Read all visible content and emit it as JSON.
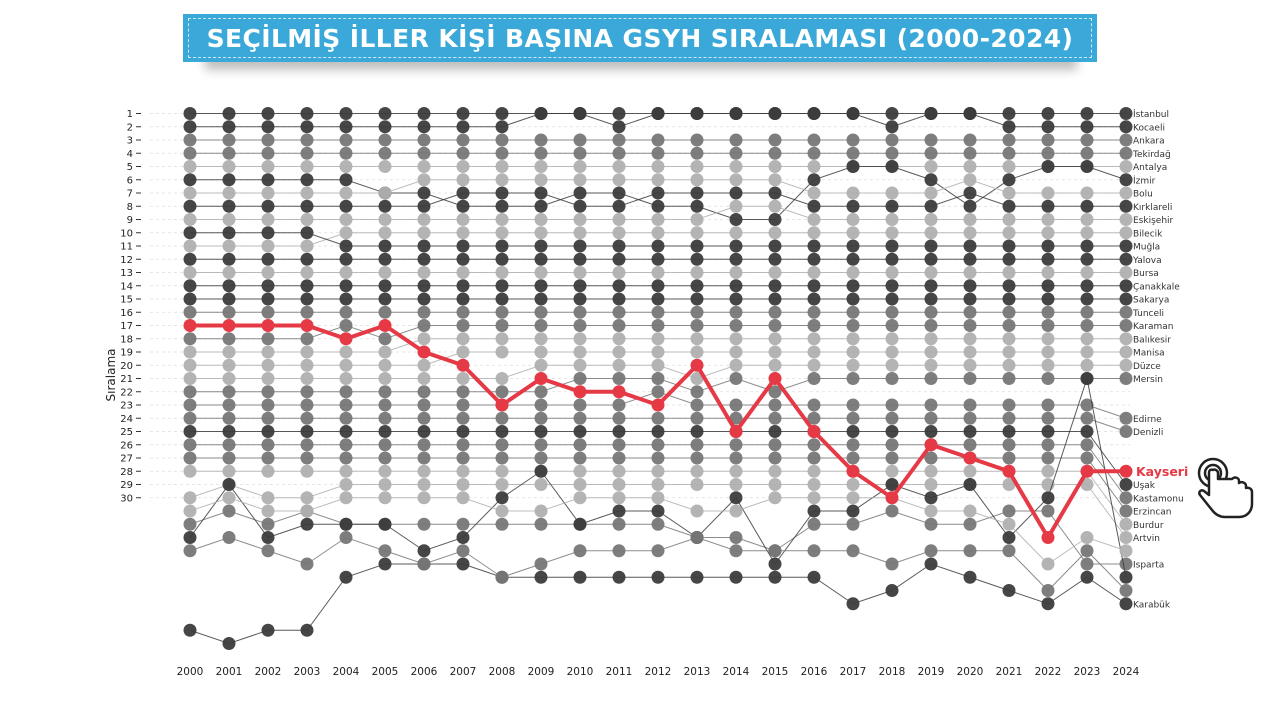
{
  "header": {
    "title": "SEÇİLMİŞ İLLER KİŞİ BAŞINA GSYH SIRALAMASI (2000-2024)"
  },
  "colors": {
    "highlight": "#e63946",
    "banner": "#3aa8d8",
    "dark": "#3c3c3c",
    "mid": "#777777",
    "light": "#b0b0b0"
  },
  "icons": {
    "pointer": "hand-pointer-icon"
  },
  "chart_data": {
    "type": "line",
    "title": "SEÇİLMİŞ İLLER KİŞİ BAŞINA GSYH SIRALAMASI (2000-2024)",
    "xlabel": "",
    "ylabel": "Sıralama",
    "x": [
      2000,
      2001,
      2002,
      2003,
      2004,
      2005,
      2006,
      2007,
      2008,
      2009,
      2010,
      2011,
      2012,
      2013,
      2014,
      2015,
      2016,
      2017,
      2018,
      2019,
      2020,
      2021,
      2022,
      2023,
      2024
    ],
    "y_ticks": [
      1,
      2,
      3,
      4,
      5,
      6,
      7,
      8,
      9,
      10,
      11,
      12,
      13,
      14,
      15,
      16,
      17,
      18,
      19,
      20,
      21,
      22,
      23,
      24,
      25,
      26,
      27,
      28,
      29,
      30
    ],
    "y_reversed": true,
    "highlight": {
      "name": "Kayseri",
      "values": [
        17,
        17,
        17,
        17,
        18,
        17,
        19,
        20,
        23,
        21,
        22,
        22,
        23,
        20,
        25,
        21,
        25,
        28,
        30,
        26,
        27,
        28,
        33,
        28,
        28
      ]
    },
    "series": [
      {
        "name": "İstanbul",
        "tone": "dark",
        "values": [
          1,
          1,
          1,
          1,
          1,
          1,
          1,
          1,
          1,
          1,
          1,
          1,
          1,
          1,
          1,
          1,
          1,
          1,
          1,
          1,
          1,
          1,
          1,
          1,
          1
        ]
      },
      {
        "name": "Kocaeli",
        "tone": "dark",
        "values": [
          2,
          2,
          2,
          2,
          2,
          2,
          2,
          2,
          2,
          1,
          1,
          2,
          1,
          1,
          1,
          1,
          1,
          1,
          2,
          1,
          1,
          2,
          2,
          2,
          2
        ]
      },
      {
        "name": "Ankara",
        "tone": "mid",
        "values": [
          3,
          3,
          3,
          3,
          3,
          3,
          3,
          3,
          3,
          3,
          3,
          3,
          3,
          3,
          3,
          3,
          3,
          3,
          3,
          3,
          3,
          3,
          3,
          3,
          3
        ]
      },
      {
        "name": "Tekirdağ",
        "tone": "mid",
        "values": [
          4,
          4,
          4,
          4,
          4,
          4,
          4,
          4,
          4,
          4,
          4,
          4,
          4,
          4,
          4,
          4,
          4,
          4,
          4,
          4,
          4,
          4,
          4,
          4,
          4
        ]
      },
      {
        "name": "Antalya",
        "tone": "light",
        "values": [
          5,
          5,
          5,
          5,
          5,
          5,
          5,
          5,
          5,
          5,
          5,
          5,
          5,
          5,
          5,
          5,
          5,
          5,
          5,
          5,
          5,
          5,
          5,
          5,
          5
        ]
      },
      {
        "name": "İzmir",
        "tone": "dark",
        "values": [
          6,
          6,
          6,
          6,
          6,
          7,
          7,
          8,
          8,
          8,
          7,
          7,
          8,
          8,
          9,
          9,
          6,
          5,
          5,
          6,
          8,
          6,
          5,
          5,
          6
        ]
      },
      {
        "name": "Bolu",
        "tone": "light",
        "values": [
          7,
          7,
          7,
          7,
          7,
          7,
          6,
          6,
          6,
          6,
          6,
          6,
          6,
          6,
          6,
          6,
          7,
          7,
          7,
          7,
          6,
          7,
          7,
          7,
          7
        ]
      },
      {
        "name": "Kırklareli",
        "tone": "dark",
        "values": [
          8,
          8,
          8,
          8,
          8,
          8,
          8,
          7,
          7,
          7,
          8,
          8,
          7,
          7,
          7,
          7,
          8,
          8,
          8,
          8,
          7,
          8,
          8,
          8,
          8
        ]
      },
      {
        "name": "Eskişehir",
        "tone": "light",
        "values": [
          9,
          9,
          9,
          9,
          9,
          9,
          9,
          9,
          9,
          9,
          9,
          9,
          9,
          9,
          8,
          8,
          9,
          9,
          9,
          9,
          9,
          9,
          9,
          9,
          9
        ]
      },
      {
        "name": "Bilecik",
        "tone": "light",
        "values": [
          11,
          11,
          11,
          11,
          10,
          10,
          10,
          10,
          10,
          10,
          10,
          10,
          10,
          10,
          10,
          10,
          10,
          10,
          10,
          10,
          10,
          10,
          10,
          10,
          10
        ]
      },
      {
        "name": "Muğla",
        "tone": "dark",
        "values": [
          10,
          10,
          10,
          10,
          11,
          11,
          11,
          11,
          11,
          11,
          11,
          11,
          11,
          11,
          11,
          11,
          11,
          11,
          11,
          11,
          11,
          11,
          11,
          11,
          11
        ]
      },
      {
        "name": "Yalova",
        "tone": "dark",
        "values": [
          12,
          12,
          12,
          12,
          12,
          12,
          12,
          12,
          12,
          12,
          12,
          12,
          12,
          12,
          12,
          12,
          12,
          12,
          12,
          12,
          12,
          12,
          12,
          12,
          12
        ]
      },
      {
        "name": "Bursa",
        "tone": "light",
        "values": [
          13,
          13,
          13,
          13,
          13,
          13,
          13,
          13,
          13,
          13,
          13,
          13,
          13,
          13,
          13,
          13,
          13,
          13,
          13,
          13,
          13,
          13,
          13,
          13,
          13
        ]
      },
      {
        "name": "Çanakkale",
        "tone": "dark",
        "values": [
          14,
          14,
          14,
          14,
          14,
          14,
          14,
          14,
          14,
          14,
          14,
          14,
          14,
          14,
          14,
          14,
          14,
          14,
          14,
          14,
          14,
          14,
          14,
          14,
          14
        ]
      },
      {
        "name": "Sakarya",
        "tone": "dark",
        "values": [
          15,
          15,
          15,
          15,
          15,
          15,
          15,
          15,
          15,
          15,
          15,
          15,
          15,
          15,
          15,
          15,
          15,
          15,
          15,
          15,
          15,
          15,
          15,
          15,
          15
        ]
      },
      {
        "name": "Tunceli",
        "tone": "mid",
        "values": [
          16,
          16,
          16,
          16,
          16,
          16,
          16,
          16,
          16,
          16,
          16,
          16,
          16,
          16,
          16,
          16,
          16,
          16,
          16,
          16,
          16,
          16,
          16,
          16,
          16
        ]
      },
      {
        "name": "Karaman",
        "tone": "mid",
        "values": [
          18,
          18,
          18,
          18,
          17,
          18,
          17,
          17,
          17,
          17,
          17,
          17,
          17,
          17,
          17,
          17,
          17,
          17,
          17,
          17,
          17,
          17,
          17,
          17,
          17
        ]
      },
      {
        "name": "Balıkesir",
        "tone": "light",
        "values": [
          19,
          19,
          19,
          19,
          19,
          19,
          18,
          18,
          18,
          18,
          18,
          18,
          18,
          18,
          18,
          18,
          18,
          18,
          18,
          18,
          18,
          18,
          18,
          18,
          18
        ]
      },
      {
        "name": "Manisa",
        "tone": "light",
        "values": [
          20,
          20,
          20,
          20,
          20,
          20,
          20,
          19,
          19,
          19,
          19,
          19,
          19,
          19,
          19,
          19,
          19,
          19,
          19,
          19,
          19,
          19,
          19,
          19,
          19
        ]
      },
      {
        "name": "Düzce",
        "tone": "light",
        "values": [
          21,
          21,
          21,
          21,
          21,
          21,
          21,
          21,
          21,
          20,
          20,
          20,
          20,
          21,
          20,
          20,
          20,
          20,
          20,
          20,
          20,
          20,
          20,
          20,
          20
        ]
      },
      {
        "name": "Mersin",
        "tone": "mid",
        "values": [
          22,
          22,
          22,
          22,
          22,
          22,
          22,
          22,
          22,
          22,
          21,
          21,
          21,
          22,
          21,
          22,
          21,
          21,
          21,
          21,
          21,
          21,
          21,
          21,
          21
        ]
      },
      {
        "name": "Edirne",
        "tone": "mid",
        "values": [
          23,
          23,
          23,
          23,
          23,
          23,
          23,
          23,
          23,
          23,
          23,
          23,
          22,
          23,
          23,
          23,
          23,
          23,
          23,
          23,
          23,
          23,
          23,
          23,
          24
        ]
      },
      {
        "name": "Denizli",
        "tone": "mid",
        "values": [
          24,
          24,
          24,
          24,
          24,
          24,
          24,
          24,
          24,
          24,
          24,
          24,
          24,
          24,
          24,
          24,
          24,
          24,
          24,
          24,
          24,
          24,
          24,
          24,
          25
        ]
      },
      {
        "name": "Uşak",
        "tone": "dark",
        "values": [
          25,
          25,
          25,
          25,
          25,
          25,
          25,
          25,
          25,
          25,
          25,
          25,
          25,
          25,
          25,
          25,
          25,
          25,
          25,
          25,
          25,
          25,
          25,
          25,
          29
        ]
      },
      {
        "name": "Kastamonu",
        "tone": "mid",
        "values": [
          26,
          26,
          26,
          26,
          26,
          26,
          26,
          26,
          26,
          26,
          26,
          26,
          26,
          26,
          26,
          26,
          26,
          26,
          26,
          26,
          26,
          26,
          26,
          26,
          30
        ]
      },
      {
        "name": "Erzincan",
        "tone": "mid",
        "values": [
          27,
          27,
          27,
          27,
          27,
          27,
          27,
          27,
          27,
          27,
          27,
          27,
          27,
          27,
          27,
          27,
          27,
          27,
          27,
          27,
          27,
          27,
          27,
          27,
          31
        ]
      },
      {
        "name": "Burdur",
        "tone": "light",
        "values": [
          28,
          28,
          28,
          28,
          28,
          28,
          28,
          28,
          28,
          28,
          28,
          28,
          28,
          28,
          28,
          28,
          28,
          28,
          28,
          28,
          28,
          28,
          28,
          28,
          32
        ]
      },
      {
        "name": "Artvin",
        "tone": "light",
        "values": [
          30,
          29,
          30,
          30,
          29,
          29,
          29,
          29,
          29,
          29,
          29,
          29,
          29,
          29,
          29,
          29,
          29,
          29,
          29,
          29,
          29,
          29,
          29,
          29,
          33
        ]
      },
      {
        "name": "Isparta",
        "tone": "mid",
        "values": [
          32,
          31,
          32,
          31,
          32,
          32,
          32,
          32,
          32,
          32,
          32,
          32,
          32,
          33,
          33,
          34,
          32,
          32,
          31,
          32,
          32,
          31,
          31,
          35,
          35
        ]
      },
      {
        "name": "Karabük",
        "tone": "dark",
        "values": [
          40,
          41,
          40,
          40,
          36,
          35,
          35,
          35,
          36,
          36,
          36,
          36,
          36,
          36,
          36,
          36,
          36,
          38,
          37,
          35,
          36,
          37,
          38,
          36,
          38
        ]
      },
      {
        "name": "",
        "tone": "dark",
        "values": [
          33,
          29,
          33,
          32,
          32,
          32,
          34,
          33,
          30,
          28,
          32,
          31,
          31,
          33,
          30,
          35,
          31,
          31,
          29,
          30,
          29,
          33,
          30,
          21,
          36
        ]
      },
      {
        "name": "",
        "tone": "mid",
        "values": [
          34,
          33,
          34,
          35,
          33,
          34,
          35,
          34,
          36,
          35,
          34,
          34,
          34,
          33,
          34,
          34,
          34,
          34,
          35,
          34,
          34,
          34,
          37,
          34,
          37
        ]
      },
      {
        "name": "",
        "tone": "light",
        "values": [
          31,
          30,
          31,
          31,
          30,
          30,
          30,
          30,
          31,
          31,
          30,
          30,
          30,
          31,
          31,
          30,
          30,
          30,
          30,
          31,
          31,
          32,
          35,
          33,
          34
        ]
      }
    ],
    "labels_right": [
      "İstanbul",
      "Kocaeli",
      "Ankara",
      "Tekirdağ",
      "Antalya",
      "İzmir",
      "Bolu",
      "Kırklareli",
      "Eskişehir",
      "Bilecik",
      "Muğla",
      "Yalova",
      "Bursa",
      "Çanakkale",
      "Sakarya",
      "Tunceli",
      "Karaman",
      "Balıkesir",
      "Manisa",
      "Düzce",
      "Mersin",
      "Edirne",
      "Denizli",
      "Kayseri",
      "Uşak",
      "Kastamonu",
      "Erzincan",
      "Burdur",
      "Artvin",
      "Isparta",
      "Karabük"
    ],
    "grid": "horizontal dashed",
    "legend": "none"
  }
}
